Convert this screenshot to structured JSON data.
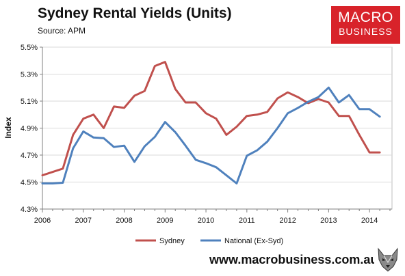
{
  "header": {
    "title": "Sydney Rental Yields (Units)",
    "subtitle": "Source: APM"
  },
  "logo": {
    "line1": "MACRO",
    "line2": "BUSINESS",
    "color": "#d8232a"
  },
  "footer": {
    "url": "www.macrobusiness.com.au",
    "icon": "wolf-mascot-icon"
  },
  "chart_data": {
    "type": "line",
    "ylabel": "Index",
    "xlabel": "",
    "xlim": [
      2006.0,
      2014.55
    ],
    "ylim": [
      4.3,
      5.5
    ],
    "xticks": [
      2006,
      2007,
      2008,
      2009,
      2010,
      2011,
      2012,
      2013,
      2014
    ],
    "xtick_labels": [
      "2006",
      "2007",
      "2008",
      "2009",
      "2010",
      "2011",
      "2012",
      "2013",
      "2014"
    ],
    "yticks": [
      4.3,
      4.5,
      4.7,
      4.9,
      5.1,
      5.3,
      5.5
    ],
    "ytick_labels": [
      "4.3%",
      "4.5%",
      "4.7%",
      "4.9%",
      "5.1%",
      "5.3%",
      "5.5%"
    ],
    "grid": true,
    "legend_position": "bottom",
    "series": [
      {
        "name": "Sydney",
        "color": "#c0504d",
        "points": [
          [
            2006.0,
            4.55
          ],
          [
            2006.25,
            4.575
          ],
          [
            2006.5,
            4.6
          ],
          [
            2006.75,
            4.85
          ],
          [
            2007.0,
            4.97
          ],
          [
            2007.25,
            5.0
          ],
          [
            2007.5,
            4.9
          ],
          [
            2007.75,
            5.06
          ],
          [
            2008.0,
            5.05
          ],
          [
            2008.25,
            5.14
          ],
          [
            2008.5,
            5.175
          ],
          [
            2008.75,
            5.36
          ],
          [
            2009.0,
            5.39
          ],
          [
            2009.25,
            5.19
          ],
          [
            2009.5,
            5.09
          ],
          [
            2009.75,
            5.09
          ],
          [
            2010.0,
            5.01
          ],
          [
            2010.25,
            4.97
          ],
          [
            2010.5,
            4.85
          ],
          [
            2010.75,
            4.91
          ],
          [
            2011.0,
            4.99
          ],
          [
            2011.25,
            5.0
          ],
          [
            2011.5,
            5.02
          ],
          [
            2011.75,
            5.12
          ],
          [
            2012.0,
            5.165
          ],
          [
            2012.25,
            5.13
          ],
          [
            2012.5,
            5.085
          ],
          [
            2012.75,
            5.115
          ],
          [
            2013.0,
            5.09
          ],
          [
            2013.25,
            4.99
          ],
          [
            2013.5,
            4.99
          ],
          [
            2013.75,
            4.85
          ],
          [
            2014.0,
            4.72
          ],
          [
            2014.25,
            4.72
          ]
        ]
      },
      {
        "name": "National (Ex-Syd)",
        "color": "#4f81bd",
        "points": [
          [
            2006.0,
            4.49
          ],
          [
            2006.25,
            4.49
          ],
          [
            2006.5,
            4.495
          ],
          [
            2006.75,
            4.75
          ],
          [
            2007.0,
            4.875
          ],
          [
            2007.25,
            4.83
          ],
          [
            2007.5,
            4.825
          ],
          [
            2007.75,
            4.76
          ],
          [
            2008.0,
            4.77
          ],
          [
            2008.25,
            4.65
          ],
          [
            2008.5,
            4.765
          ],
          [
            2008.75,
            4.835
          ],
          [
            2009.0,
            4.945
          ],
          [
            2009.25,
            4.87
          ],
          [
            2009.5,
            4.77
          ],
          [
            2009.75,
            4.665
          ],
          [
            2010.0,
            4.64
          ],
          [
            2010.25,
            4.61
          ],
          [
            2010.5,
            4.55
          ],
          [
            2010.75,
            4.49
          ],
          [
            2011.0,
            4.695
          ],
          [
            2011.25,
            4.735
          ],
          [
            2011.5,
            4.8
          ],
          [
            2011.75,
            4.9
          ],
          [
            2012.0,
            5.01
          ],
          [
            2012.25,
            5.05
          ],
          [
            2012.5,
            5.095
          ],
          [
            2012.75,
            5.13
          ],
          [
            2013.0,
            5.2
          ],
          [
            2013.25,
            5.09
          ],
          [
            2013.5,
            5.145
          ],
          [
            2013.75,
            5.04
          ],
          [
            2014.0,
            5.04
          ],
          [
            2014.25,
            4.985
          ]
        ]
      }
    ]
  }
}
